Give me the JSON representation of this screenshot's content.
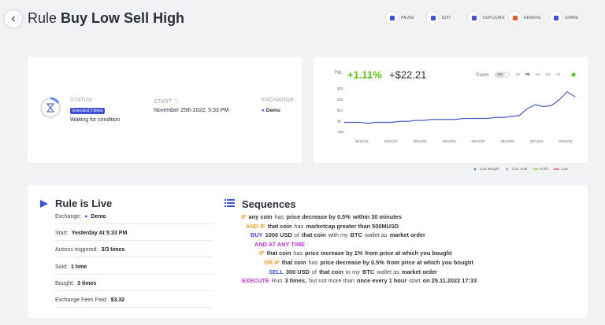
{
  "header": {
    "title_prefix": "Rule",
    "title_name": "Buy Low Sell High",
    "actions": [
      "PAUSE",
      "EDIT",
      "DUPLICATE",
      "REMOVE",
      "SHARE"
    ]
  },
  "status_card": {
    "status_label": "STATUS",
    "badge": "Executed 3 times",
    "status": "Waiting for condition",
    "start_label": "START",
    "start": "November 25th 2022, 5:33 PM",
    "exchange_label": "EXCHANGE",
    "exchange": "Demo"
  },
  "pnl": {
    "label": "P&L",
    "percent": "+1.11%",
    "amount": "+$22.21",
    "traces_label": "Traces",
    "toggle": "ON",
    "ranges": [
      "1D",
      "7D",
      "1M",
      "6M",
      "All"
    ],
    "chart_data": {
      "type": "line",
      "color": "#4a5bc4",
      "values": [
        -1,
        -1,
        -1,
        -2,
        -1,
        -1,
        -1,
        0,
        0,
        1,
        1,
        2,
        2,
        2,
        2,
        3,
        3,
        3,
        3,
        4,
        4,
        5,
        6,
        13,
        17,
        15,
        16,
        22,
        30,
        25
      ],
      "xlabels": [
        "26/11/22",
        "26/11/22",
        "26/11/22",
        "26/11/22",
        "26/11/22",
        "26/11/22",
        "26/11/22",
        "26/11/22"
      ],
      "ylim": [
        -11,
        33
      ],
      "yticks": [
        {
          "value": 33,
          "label": "$33"
        },
        {
          "value": 22,
          "label": "$22"
        },
        {
          "value": 11,
          "label": "$11"
        },
        {
          "value": 0,
          "label": "$0"
        },
        {
          "value": -11,
          "label": "-$11"
        }
      ],
      "legend": [
        {
          "name": "Coin Bought",
          "color": "#5b6cc0"
        },
        {
          "name": "Coin Sold",
          "color": "#8a94b8"
        },
        {
          "name": "Profit",
          "color": "#7ed321"
        },
        {
          "name": "Loss",
          "color": "#e0245e"
        }
      ]
    }
  },
  "rule": {
    "title": "Rule is Live",
    "fields": [
      {
        "label": "Exchange:",
        "value": "Demo"
      },
      {
        "label": "Start:",
        "value": "Yesterday At 5:33 PM"
      },
      {
        "label": "Actions triggered:",
        "value": "3/3 times"
      },
      {
        "label": "Sold:",
        "value": "1 time"
      },
      {
        "label": "Bought:",
        "value": "3 times"
      },
      {
        "label": "Exchange Fees Paid:",
        "value": "$3.32"
      }
    ]
  },
  "sequences": {
    "title": "Sequences",
    "lines": [
      [
        {
          "text": "IF",
          "color": "#f0a030"
        },
        {
          "text": "any coin",
          "bold": true
        },
        {
          "text": "has"
        },
        {
          "text": "price decrease by 0.5%",
          "bold": true
        },
        {
          "text": "within 30 minutes",
          "bold": true
        }
      ],
      [
        {
          "text": "AND IF",
          "color": "#f0a030"
        },
        {
          "text": "that coin",
          "bold": true
        },
        {
          "text": "has"
        },
        {
          "text": "marketcap greater than 500MUSD",
          "bold": true
        }
      ],
      [
        {
          "text": "BUY",
          "color": "#3f51d6"
        },
        {
          "text": "1000 USD",
          "bold": true
        },
        {
          "text": "of"
        },
        {
          "text": "that coin",
          "bold": true
        },
        {
          "text": "with my"
        },
        {
          "text": "BTC",
          "bold": true
        },
        {
          "text": "wallet as"
        },
        {
          "text": "market order",
          "bold": true
        }
      ],
      [
        {
          "text": "AND AT ANY TIME",
          "color": "#c03ad6"
        }
      ],
      [
        {
          "text": "IF",
          "color": "#f0a030"
        },
        {
          "text": "that coin",
          "bold": true
        },
        {
          "text": "has"
        },
        {
          "text": "price increase by 1%",
          "bold": true
        },
        {
          "text": "from price at which you bought",
          "bold": true
        }
      ],
      [
        {
          "text": "OR IF",
          "color": "#f0a030"
        },
        {
          "text": "that coin",
          "bold": true
        },
        {
          "text": "has"
        },
        {
          "text": "price decrease by 0.5%",
          "bold": true
        },
        {
          "text": "from price at which you bought",
          "bold": true
        }
      ],
      [
        {
          "text": "SELL",
          "color": "#3f51d6"
        },
        {
          "text": "300 USD",
          "bold": true
        },
        {
          "text": "of"
        },
        {
          "text": "that coin",
          "bold": true
        },
        {
          "text": "to my"
        },
        {
          "text": "BTC",
          "bold": true
        },
        {
          "text": "wallet as"
        },
        {
          "text": "market order",
          "bold": true
        }
      ],
      [
        {
          "text": "EXECUTE",
          "color": "#c03ad6"
        },
        {
          "text": "Run"
        },
        {
          "text": "3 times,",
          "bold": true
        },
        {
          "text": "but not more than"
        },
        {
          "text": "once every 1 hour",
          "bold": true
        },
        {
          "text": "start"
        },
        {
          "text": "on 25.11.2022 17:33",
          "bold": true
        }
      ]
    ]
  }
}
